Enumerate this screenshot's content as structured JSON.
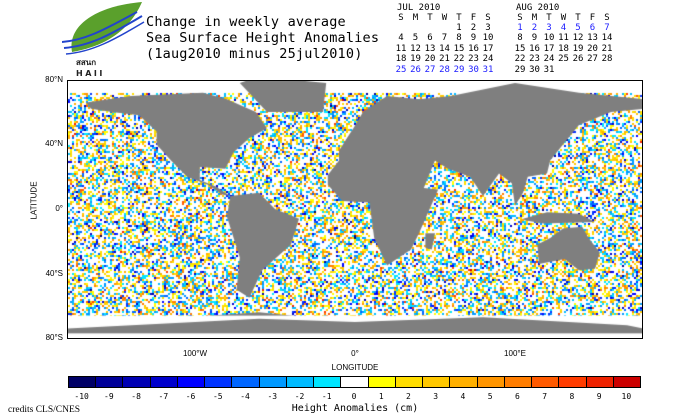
{
  "logo": {
    "text_top": "สสนก",
    "text_bottom": "HAII",
    "icon": "leaf-wave-logo"
  },
  "title": {
    "line1": "Change in weekly average",
    "line2": "Sea Surface Height Anomalies",
    "line3": "(1aug2010 minus 25jul2010)"
  },
  "calendars": [
    {
      "month": "JUL 2010",
      "days_header": [
        "S",
        "M",
        "T",
        "W",
        "T",
        "F",
        "S"
      ],
      "first_weekday": 4,
      "num_days": 31,
      "highlight": [
        25,
        26,
        27,
        28,
        29,
        30,
        31
      ]
    },
    {
      "month": "AUG 2010",
      "days_header": [
        "S",
        "M",
        "T",
        "W",
        "T",
        "F",
        "S"
      ],
      "first_weekday": 0,
      "num_days": 31,
      "highlight": [
        1,
        2,
        3,
        4,
        5,
        6,
        7
      ]
    }
  ],
  "axes": {
    "y_label": "LATITUDE",
    "x_label": "LONGITUDE",
    "y_ticks": [
      {
        "value": 80,
        "label": "80°N"
      },
      {
        "value": 40,
        "label": "40°N"
      },
      {
        "value": 0,
        "label": "0°"
      },
      {
        "value": -40,
        "label": "40°S"
      },
      {
        "value": -80,
        "label": "80°S"
      }
    ],
    "x_ticks": [
      {
        "value": -100,
        "label": "100°W"
      },
      {
        "value": 0,
        "label": "0°"
      },
      {
        "value": 100,
        "label": "100°E"
      }
    ]
  },
  "colorbar": {
    "title": "Height Anomalies (cm)",
    "labels": [
      "-10",
      "-9",
      "-8",
      "-7",
      "-6",
      "-5",
      "-4",
      "-3",
      "-2",
      "-1",
      "0",
      "1",
      "2",
      "3",
      "4",
      "5",
      "6",
      "7",
      "8",
      "9",
      "10"
    ],
    "colors": [
      "#000066",
      "#000099",
      "#0000b3",
      "#0000cc",
      "#0000ff",
      "#0033ff",
      "#0066ff",
      "#0099ff",
      "#00bbff",
      "#00e5ff",
      "#ffffff",
      "#ffff00",
      "#ffdd00",
      "#ffc800",
      "#ffb000",
      "#ff9500",
      "#ff7d00",
      "#ff5a00",
      "#ff3c00",
      "#ee2200",
      "#cc0000"
    ]
  },
  "credits": "credits CLS/CNES",
  "land_color": "#7f7f7f"
}
